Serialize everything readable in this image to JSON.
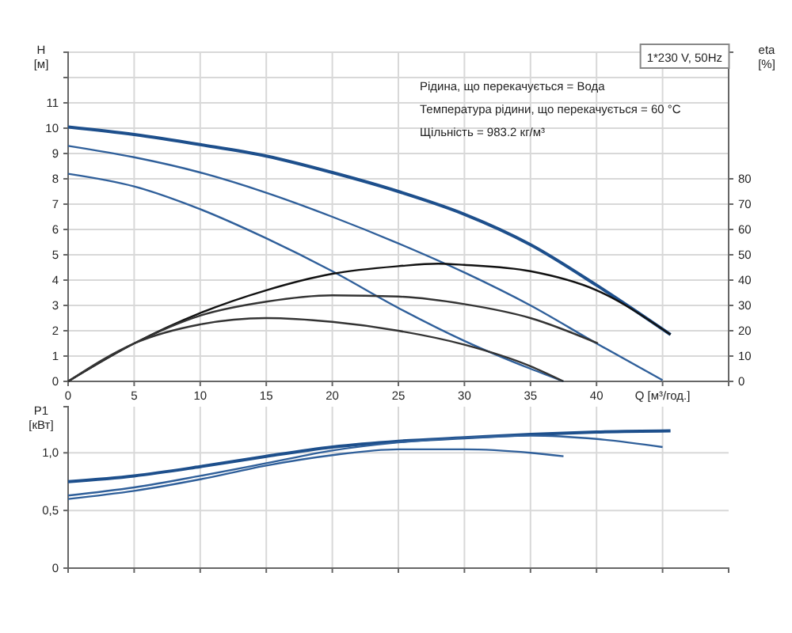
{
  "chart_data": [
    {
      "type": "line",
      "ylabel": "H [м]",
      "y2label": "eta [%]",
      "annotations": [
        "1*230 V, 50Hz",
        "Рідина, що перекачується = Вода",
        "Температура рідини, що перекачується = 60 °C",
        "Щільність = 983.2 кг/м³"
      ],
      "xlim": [
        0,
        50
      ],
      "xticks": [
        0,
        5,
        10,
        15,
        20,
        25,
        30,
        35,
        40,
        {
          "value": 45,
          "label": "Q [м³/год.]"
        }
      ],
      "ylim": [
        0,
        13
      ],
      "yticks": [
        0,
        1,
        2,
        3,
        4,
        5,
        6,
        7,
        8,
        9,
        10,
        11,
        {
          "value": 12,
          "label": null
        },
        {
          "value": 13,
          "label": null
        }
      ],
      "y2lim": [
        0,
        130
      ],
      "y2ticks": [
        0,
        10,
        20,
        30,
        40,
        50,
        60,
        70,
        80
      ],
      "grid": true,
      "series": [
        {
          "color": "#1d4f8c",
          "x": [
            0,
            5,
            10,
            15,
            20,
            25,
            30,
            35,
            40,
            45.6
          ],
          "values": [
            10.05,
            9.75,
            9.35,
            8.9,
            8.25,
            7.5,
            6.6,
            5.4,
            3.8,
            1.85
          ]
        },
        {
          "color": "#2f5f9a",
          "x": [
            0,
            5,
            10,
            15,
            20,
            25,
            30,
            35,
            40,
            45
          ],
          "values": [
            9.3,
            8.85,
            8.25,
            7.45,
            6.5,
            5.45,
            4.3,
            3.0,
            1.5,
            0.05
          ]
        },
        {
          "color": "#2f5f9a",
          "x": [
            0,
            5,
            10,
            15,
            20,
            25,
            30,
            35,
            37.5
          ],
          "values": [
            8.2,
            7.7,
            6.8,
            5.65,
            4.35,
            2.9,
            1.6,
            0.5,
            0
          ]
        },
        {
          "color": "#111111",
          "axis": "y2",
          "x": [
            0,
            5,
            10,
            15,
            20,
            25,
            28,
            30,
            35,
            40,
            45.6
          ],
          "values": [
            0,
            15,
            27,
            36,
            42.5,
            45.5,
            46.5,
            46,
            43.5,
            36,
            18.5
          ]
        },
        {
          "color": "#333333",
          "axis": "y2",
          "x": [
            0,
            5,
            10,
            15,
            20,
            25,
            30,
            35,
            40.1
          ],
          "values": [
            0,
            15,
            26,
            31.5,
            34,
            33.5,
            30.5,
            25,
            15
          ]
        },
        {
          "color": "#333333",
          "axis": "y2",
          "x": [
            0,
            5,
            10,
            15,
            20,
            25,
            30,
            35,
            37.5
          ],
          "values": [
            0,
            15,
            22.5,
            25,
            23.5,
            20,
            14.5,
            6,
            0
          ]
        }
      ]
    },
    {
      "type": "line",
      "ylabel": "P1 [кВт]",
      "xlim": [
        0,
        50
      ],
      "xticks": [
        0,
        5,
        10,
        15,
        20,
        25,
        30,
        35,
        40,
        45
      ],
      "ylim": [
        0,
        1.4
      ],
      "yticks": [
        0,
        {
          "value": 0.5,
          "label": "0,5"
        },
        {
          "value": 1,
          "label": "1,0"
        }
      ],
      "grid": true,
      "tick_labels": "y",
      "series": [
        {
          "color": "#1d4f8c",
          "x": [
            0,
            5,
            10,
            15,
            20,
            25,
            30,
            35,
            40,
            45.6
          ],
          "values": [
            0.75,
            0.8,
            0.88,
            0.97,
            1.05,
            1.1,
            1.13,
            1.16,
            1.18,
            1.19
          ]
        },
        {
          "color": "#2f5f9a",
          "x": [
            0,
            5,
            10,
            15,
            20,
            25,
            30,
            35,
            40,
            45
          ],
          "values": [
            0.63,
            0.7,
            0.8,
            0.91,
            1.02,
            1.09,
            1.13,
            1.15,
            1.12,
            1.05
          ]
        },
        {
          "color": "#2f5f9a",
          "x": [
            0,
            5,
            10,
            15,
            20,
            25,
            30,
            35,
            37.5
          ],
          "values": [
            0.6,
            0.67,
            0.77,
            0.89,
            0.98,
            1.03,
            1.03,
            1,
            0.97
          ]
        }
      ]
    }
  ]
}
